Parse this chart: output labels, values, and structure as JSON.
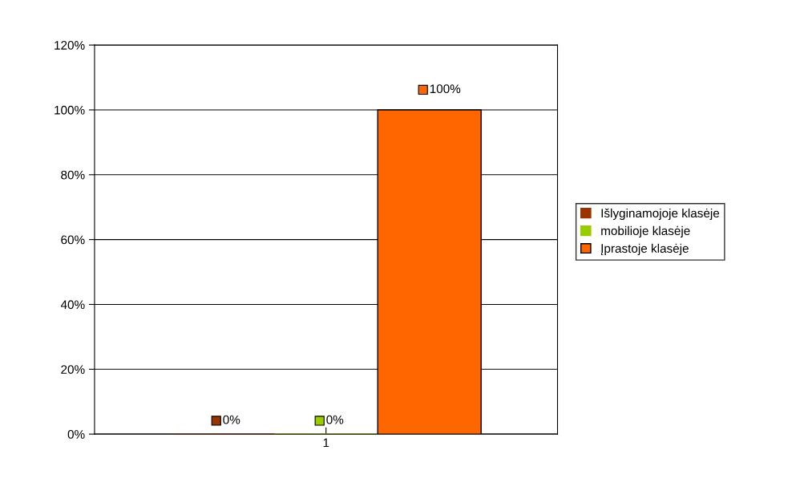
{
  "chart_data": {
    "type": "bar",
    "categories": [
      "1"
    ],
    "series": [
      {
        "name": "Išlyginamojoje klasėje",
        "color": "#993300",
        "values": [
          0
        ],
        "value_labels": [
          "0%"
        ]
      },
      {
        "name": "mobilioje klasėje",
        "color": "#99cc00",
        "values": [
          0
        ],
        "value_labels": [
          "0%"
        ]
      },
      {
        "name": "Įprastoje klasėje",
        "color": "#ff6600",
        "values": [
          100
        ],
        "value_labels": [
          "100%"
        ]
      }
    ],
    "ylim": [
      0,
      120
    ],
    "yticks": [
      {
        "value": 0,
        "label": "0%"
      },
      {
        "value": 20,
        "label": "20%"
      },
      {
        "value": 40,
        "label": "40%"
      },
      {
        "value": 60,
        "label": "60%"
      },
      {
        "value": 80,
        "label": "80%"
      },
      {
        "value": 100,
        "label": "100%"
      },
      {
        "value": 120,
        "label": "120%"
      }
    ],
    "grid": "y",
    "legend": "right"
  }
}
